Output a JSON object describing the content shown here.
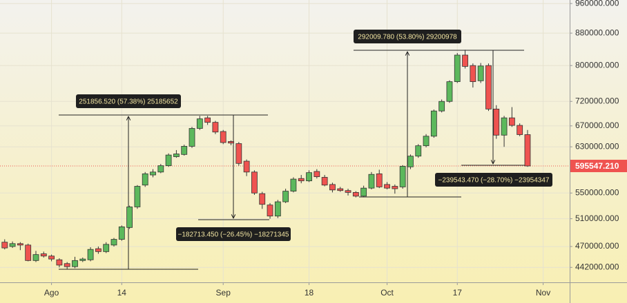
{
  "chart_data": {
    "type": "candlestick",
    "log_scale": true,
    "grid": true,
    "up_color": "#5cb85c",
    "down_color": "#ef5350",
    "x": [
      0,
      1,
      2,
      3,
      4,
      5,
      6,
      7,
      8,
      9,
      10,
      11,
      12,
      13,
      14,
      15,
      16,
      17,
      18,
      19,
      20,
      21,
      22,
      23,
      24,
      25,
      26,
      27,
      28,
      29,
      30,
      31,
      32,
      33,
      34,
      35,
      36,
      37,
      38,
      39,
      40,
      41,
      42,
      43,
      44,
      45,
      46,
      47,
      48,
      49,
      50,
      51,
      52,
      53,
      54,
      55,
      56,
      57,
      58,
      59,
      60,
      61,
      62,
      63,
      64,
      65,
      66,
      67
    ],
    "open": [
      476000,
      470000,
      474000,
      472000,
      451000,
      460000,
      457000,
      452000,
      447000,
      443000,
      451000,
      452000,
      467000,
      463000,
      472000,
      480000,
      497000,
      528000,
      563000,
      580000,
      585000,
      596000,
      612000,
      616000,
      631000,
      665000,
      686000,
      677000,
      659000,
      640000,
      636000,
      604000,
      585000,
      549000,
      531000,
      514000,
      536000,
      553000,
      574000,
      570000,
      586000,
      576000,
      564000,
      557000,
      554000,
      551000,
      545000,
      558000,
      582000,
      564000,
      561000,
      560000,
      594000,
      613000,
      632000,
      650000,
      700000,
      720000,
      763000,
      825000,
      800000,
      765000,
      800000,
      704000,
      652000,
      686000,
      671000,
      653000
    ],
    "high": [
      480000,
      477000,
      476000,
      474000,
      464000,
      463000,
      459000,
      454000,
      449000,
      456000,
      455000,
      469000,
      470000,
      476000,
      482000,
      500000,
      530000,
      563000,
      585000,
      590000,
      599000,
      618000,
      624000,
      634000,
      668000,
      690000,
      690000,
      680000,
      662000,
      642000,
      639000,
      607000,
      588000,
      552000,
      534000,
      539000,
      557000,
      576000,
      580000,
      588000,
      590000,
      580000,
      567000,
      560000,
      557000,
      553000,
      562000,
      585000,
      589000,
      568000,
      564000,
      597000,
      616000,
      635000,
      654000,
      703000,
      724000,
      766000,
      830000,
      838000,
      805000,
      806000,
      805000,
      712000,
      690000,
      708000,
      675000,
      662000
    ],
    "low": [
      466000,
      468000,
      465000,
      450000,
      449000,
      455000,
      450000,
      442000,
      440000,
      441000,
      449000,
      450000,
      460000,
      461000,
      470000,
      478000,
      495000,
      525000,
      560000,
      576000,
      583000,
      594000,
      610000,
      614000,
      628000,
      662000,
      672000,
      654000,
      635000,
      633000,
      596000,
      578000,
      547000,
      525000,
      510000,
      511000,
      534000,
      551000,
      566000,
      568000,
      574000,
      561000,
      551000,
      552000,
      546000,
      543000,
      543000,
      556000,
      558000,
      556000,
      549000,
      557000,
      590000,
      610000,
      629000,
      647000,
      697000,
      717000,
      760000,
      793000,
      750000,
      760000,
      700000,
      645000,
      630000,
      668000,
      650000,
      594000
    ],
    "close": [
      468000,
      474000,
      472000,
      451000,
      459000,
      457000,
      453000,
      445000,
      443000,
      451000,
      453000,
      466000,
      463000,
      473000,
      480000,
      498000,
      528000,
      561000,
      582000,
      585000,
      596000,
      615000,
      617000,
      631000,
      665000,
      684000,
      677000,
      658000,
      638000,
      637000,
      600000,
      585000,
      550000,
      532000,
      514000,
      536000,
      553000,
      573000,
      570000,
      584000,
      577000,
      563000,
      555000,
      554000,
      551000,
      545000,
      558000,
      581000,
      560000,
      558000,
      557000,
      595000,
      613000,
      632000,
      650000,
      700000,
      720000,
      763000,
      825000,
      798000,
      763000,
      799000,
      704000,
      652000,
      686000,
      671000,
      653000,
      595547.21
    ],
    "xlim": [
      -0.6,
      72.4
    ],
    "xticks": [
      {
        "value": 6,
        "label": "Ago"
      },
      {
        "value": 15,
        "label": "14"
      },
      {
        "value": 28,
        "label": "Sep"
      },
      {
        "value": 39,
        "label": "18"
      },
      {
        "value": 49,
        "label": "Oct"
      },
      {
        "value": 58,
        "label": "17"
      },
      {
        "value": 69,
        "label": "Nov"
      }
    ],
    "ylim": [
      423000,
      970000
    ],
    "yticks": [
      {
        "value": 960000,
        "label": "960000.000"
      },
      {
        "value": 880000,
        "label": "880000.000"
      },
      {
        "value": 800000,
        "label": "800000.000"
      },
      {
        "value": 720000,
        "label": "720000.000"
      },
      {
        "value": 670000,
        "label": "670000.000"
      },
      {
        "value": 630000,
        "label": "630000.000"
      },
      {
        "value": 550000,
        "label": "550000.000"
      },
      {
        "value": 510000,
        "label": "510000.000"
      },
      {
        "value": 470000,
        "label": "470000.000"
      },
      {
        "value": 442000,
        "label": "442000.000"
      }
    ],
    "last_price": {
      "value": 595547.21,
      "label": "595547.210"
    },
    "annotations": [
      {
        "text": "251856.520 (57.38%) 25185652"
      },
      {
        "text": "−182713.450 (−26.45%) −18271345"
      },
      {
        "text": "292009.780 (53.80%) 29200978"
      },
      {
        "text": "−239543.470 (−28.70%) −23954347"
      }
    ]
  }
}
